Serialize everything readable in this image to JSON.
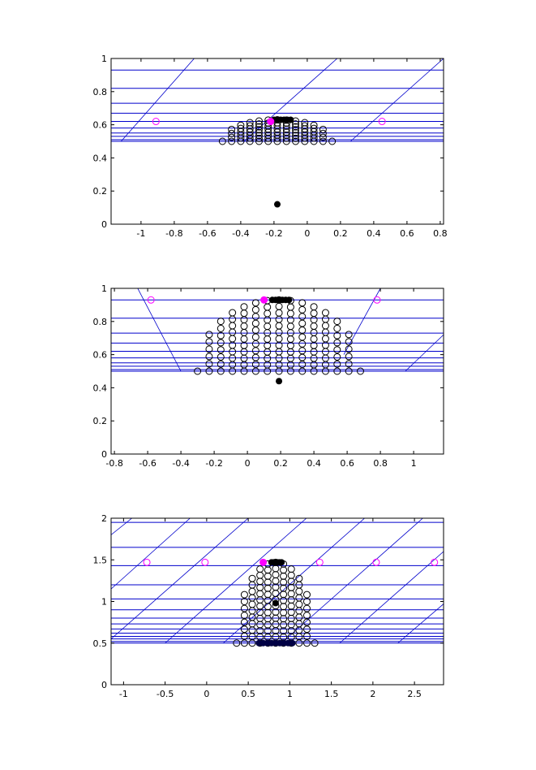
{
  "colors": {
    "hline": "#0000cc",
    "diag": "#0000cc",
    "marker_open": "#000000",
    "marker_filled": "#000000",
    "magenta": "#ff00ff",
    "axes": "#000000"
  },
  "chart_data": [
    {
      "type": "scatter",
      "xlim": [
        -1.18,
        0.82
      ],
      "ylim": [
        0,
        1
      ],
      "xticks": [
        -1,
        -0.8,
        -0.6,
        -0.4,
        -0.2,
        0,
        0.2,
        0.4,
        0.6,
        0.8
      ],
      "yticks": [
        0,
        0.2,
        0.4,
        0.6,
        0.8,
        1
      ],
      "xtick_labels": [
        "-1",
        "-0.8",
        "-0.6",
        "-0.4",
        "-0.2",
        "0",
        "0.2",
        "0.4",
        "0.6",
        "0.8"
      ],
      "ytick_labels": [
        "0",
        "0.2",
        "0.4",
        "0.6",
        "0.8",
        "1"
      ],
      "hlines": [
        0.5,
        0.51,
        0.53,
        0.55,
        0.58,
        0.62,
        0.67,
        0.73,
        0.82,
        0.93
      ],
      "diag_lines": [
        [
          [
            -1.12,
            0.5
          ],
          [
            -0.68,
            1.0
          ]
        ],
        [
          [
            -0.38,
            0.5
          ],
          [
            0.18,
            1.0
          ]
        ],
        [
          [
            0.26,
            0.5
          ],
          [
            0.82,
            1.0
          ]
        ]
      ],
      "arc": {
        "center_x": -0.18,
        "half_width": 0.33,
        "y_base": 0.5,
        "y_top": 0.63,
        "columns": 13,
        "rows": 8
      },
      "filled_top": {
        "x_from": -0.2,
        "x_to": -0.1,
        "y": 0.63
      },
      "filled_point": {
        "x": -0.18,
        "y": 0.12
      },
      "magenta_filled": {
        "x": -0.22,
        "y": 0.62
      },
      "magenta_open": [
        {
          "x": -0.91,
          "y": 0.62
        },
        {
          "x": 0.45,
          "y": 0.62
        }
      ]
    },
    {
      "type": "scatter",
      "xlim": [
        -0.82,
        1.18
      ],
      "ylim": [
        0,
        1
      ],
      "xticks": [
        -0.8,
        -0.6,
        -0.4,
        -0.2,
        0,
        0.2,
        0.4,
        0.6,
        0.8,
        1
      ],
      "yticks": [
        0,
        0.2,
        0.4,
        0.6,
        0.8,
        1
      ],
      "xtick_labels": [
        "-0.8",
        "-0.6",
        "-0.4",
        "-0.2",
        "0",
        "0.2",
        "0.4",
        "0.6",
        "0.8",
        "1"
      ],
      "ytick_labels": [
        "0",
        "0.2",
        "0.4",
        "0.6",
        "0.8",
        "1"
      ],
      "hlines": [
        0.5,
        0.51,
        0.53,
        0.55,
        0.58,
        0.62,
        0.67,
        0.73,
        0.82,
        0.93
      ],
      "diag_lines": [
        [
          [
            -0.4,
            0.5
          ],
          [
            -0.66,
            1.0
          ]
        ],
        [
          [
            0.58,
            0.6
          ],
          [
            0.8,
            1.0
          ]
        ],
        [
          [
            0.95,
            0.5
          ],
          [
            1.18,
            0.72
          ]
        ]
      ],
      "arc": {
        "center_x": 0.19,
        "half_width": 0.49,
        "y_base": 0.5,
        "y_top": 0.93,
        "columns": 15,
        "rows": 12
      },
      "filled_top": {
        "x_from": 0.15,
        "x_to": 0.25,
        "y": 0.93
      },
      "filled_point": {
        "x": 0.19,
        "y": 0.44
      },
      "magenta_filled": {
        "x": 0.1,
        "y": 0.93
      },
      "magenta_open": [
        {
          "x": -0.58,
          "y": 0.93
        },
        {
          "x": 0.78,
          "y": 0.93
        }
      ]
    },
    {
      "type": "scatter",
      "xlim": [
        -1.15,
        2.85
      ],
      "ylim": [
        0,
        2
      ],
      "xticks": [
        -1,
        -0.5,
        0,
        0.5,
        1,
        1.5,
        2,
        2.5
      ],
      "yticks": [
        0,
        0.5,
        1,
        1.5,
        2
      ],
      "xtick_labels": [
        "-1",
        "-0.5",
        "0",
        "0.5",
        "1",
        "1.5",
        "2",
        "2.5"
      ],
      "ytick_labels": [
        "0",
        "0.5",
        "1",
        "1.5",
        "2"
      ],
      "hlines": [
        0.5,
        0.52,
        0.55,
        0.58,
        0.62,
        0.67,
        0.73,
        0.8,
        0.9,
        1.03,
        1.2,
        1.43,
        1.65,
        1.95
      ],
      "diag_lines": [
        [
          [
            -1.15,
            1.8
          ],
          [
            -0.9,
            2.0
          ]
        ],
        [
          [
            -1.15,
            1.15
          ],
          [
            -0.2,
            2.0
          ]
        ],
        [
          [
            -1.15,
            0.55
          ],
          [
            0.5,
            2.0
          ]
        ],
        [
          [
            -0.5,
            0.5
          ],
          [
            1.2,
            2.0
          ]
        ],
        [
          [
            0.2,
            0.5
          ],
          [
            1.9,
            2.0
          ]
        ],
        [
          [
            0.9,
            0.5
          ],
          [
            2.6,
            2.0
          ]
        ],
        [
          [
            1.6,
            0.5
          ],
          [
            2.85,
            1.6
          ]
        ],
        [
          [
            2.3,
            0.5
          ],
          [
            2.85,
            0.97
          ]
        ]
      ],
      "arc": {
        "center_x": 0.83,
        "half_width": 0.47,
        "y_base": 0.5,
        "y_top": 1.47,
        "columns": 11,
        "rows": 14
      },
      "filled_top": {
        "x_from": 0.78,
        "x_to": 0.9,
        "y": 1.47
      },
      "filled_point": {
        "x": 0.83,
        "y": 0.98
      },
      "filled_bottom": {
        "x_from": 0.63,
        "x_to": 1.03,
        "y": 0.5
      },
      "magenta_filled": {
        "x": 0.68,
        "y": 1.47
      },
      "magenta_open": [
        {
          "x": -0.72,
          "y": 1.47
        },
        {
          "x": -0.02,
          "y": 1.47
        },
        {
          "x": 1.36,
          "y": 1.47
        },
        {
          "x": 2.04,
          "y": 1.47
        },
        {
          "x": 2.74,
          "y": 1.47
        }
      ]
    }
  ]
}
